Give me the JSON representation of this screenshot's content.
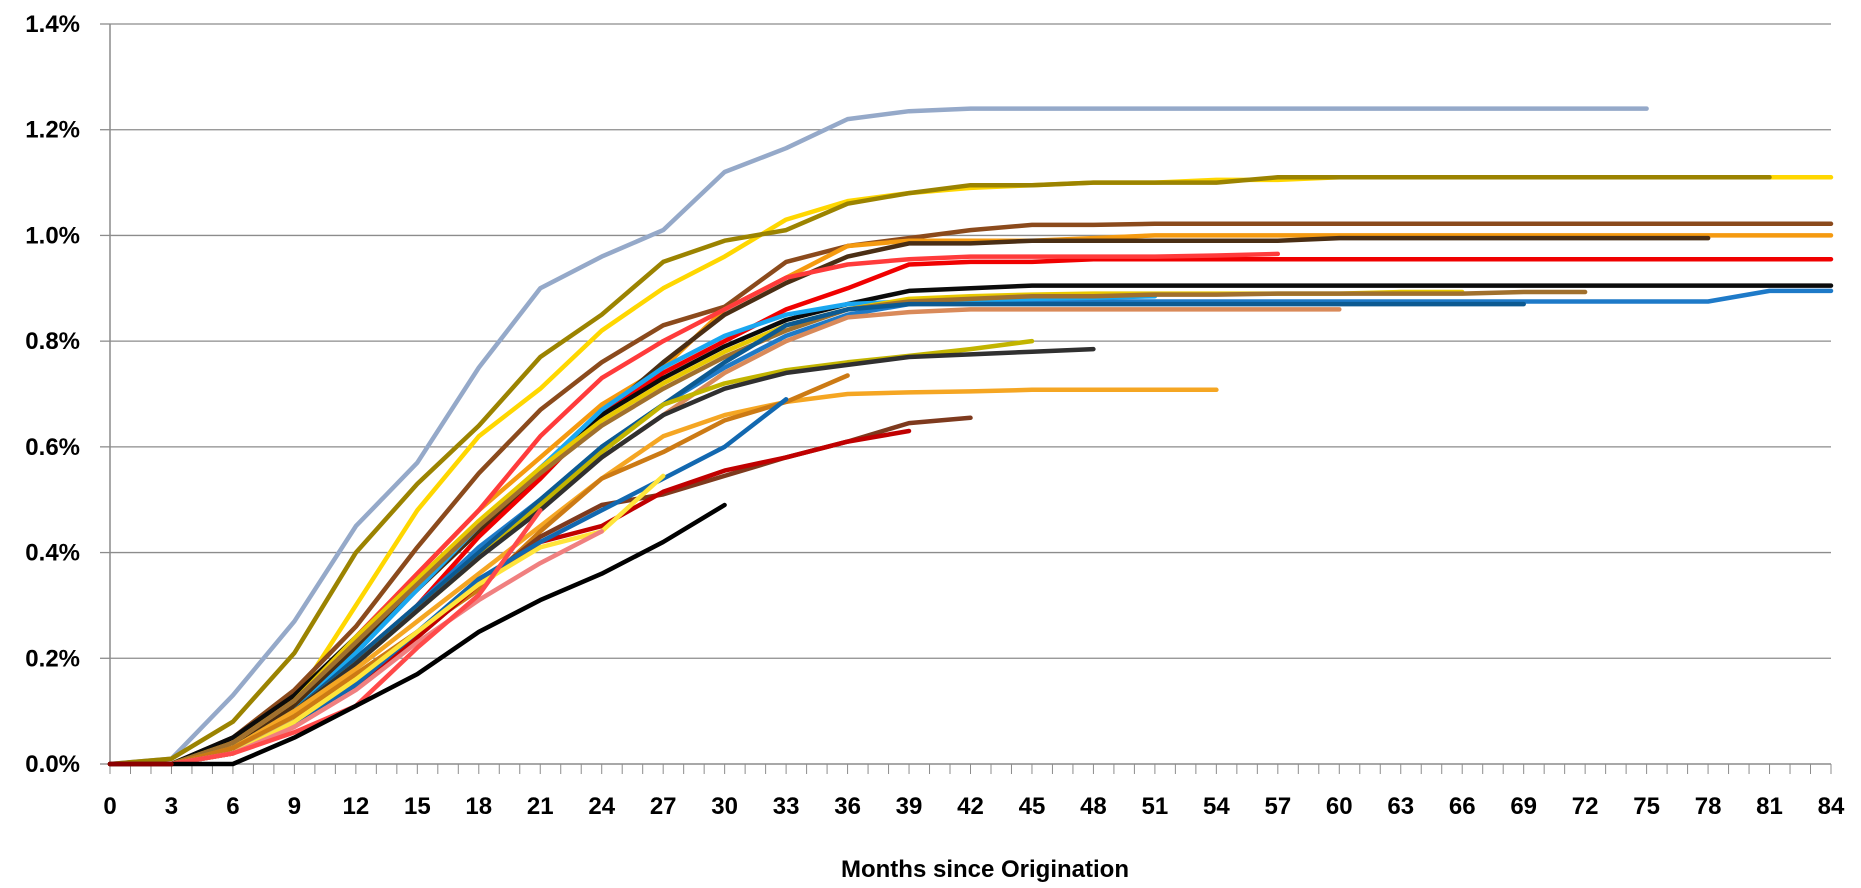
{
  "chart_data": {
    "type": "line",
    "title": "",
    "xlabel": "Months since Origination",
    "ylabel": "",
    "xlim": [
      0,
      84
    ],
    "ylim": [
      0,
      1.4
    ],
    "x_ticks": [
      "0",
      "3",
      "6",
      "9",
      "12",
      "15",
      "18",
      "21",
      "24",
      "27",
      "30",
      "33",
      "36",
      "39",
      "42",
      "45",
      "48",
      "51",
      "54",
      "57",
      "60",
      "63",
      "66",
      "69",
      "72",
      "75",
      "78",
      "81",
      "84"
    ],
    "y_ticks": [
      "0.0%",
      "0.2%",
      "0.4%",
      "0.6%",
      "0.8%",
      "1.0%",
      "1.2%",
      "1.4%"
    ],
    "grid": true,
    "legend": "none",
    "series": [
      {
        "color": "#95A9C9",
        "x": [
          0,
          3,
          6,
          9,
          12,
          15,
          18,
          21,
          24,
          27,
          30,
          33,
          36,
          39,
          42,
          45,
          48,
          51,
          54,
          57,
          60,
          63,
          66,
          69,
          72,
          75
        ],
        "y": [
          0,
          0.01,
          0.13,
          0.27,
          0.45,
          0.57,
          0.75,
          0.9,
          0.96,
          1.01,
          1.12,
          1.165,
          1.22,
          1.235,
          1.24,
          1.24,
          1.24,
          1.24,
          1.24,
          1.24,
          1.24,
          1.24,
          1.24,
          1.24,
          1.24,
          1.24
        ]
      },
      {
        "color": "#FFD700",
        "x": [
          0,
          3,
          6,
          9,
          12,
          15,
          18,
          21,
          24,
          27,
          30,
          33,
          36,
          39,
          42,
          45,
          48,
          51,
          54,
          57,
          60,
          63,
          66,
          69,
          72,
          75,
          78,
          81,
          84
        ],
        "y": [
          0,
          0,
          0.03,
          0.12,
          0.3,
          0.48,
          0.62,
          0.71,
          0.82,
          0.9,
          0.96,
          1.03,
          1.065,
          1.08,
          1.09,
          1.095,
          1.1,
          1.1,
          1.105,
          1.105,
          1.11,
          1.11,
          1.11,
          1.11,
          1.11,
          1.11,
          1.11,
          1.11,
          1.11
        ]
      },
      {
        "color": "#9B8300",
        "x": [
          0,
          3,
          6,
          9,
          12,
          15,
          18,
          21,
          24,
          27,
          30,
          33,
          36,
          39,
          42,
          45,
          48,
          51,
          54,
          57,
          60,
          63,
          66,
          69,
          72,
          75,
          78,
          81
        ],
        "y": [
          0,
          0.01,
          0.08,
          0.21,
          0.4,
          0.53,
          0.64,
          0.77,
          0.85,
          0.95,
          0.99,
          1.01,
          1.06,
          1.08,
          1.095,
          1.095,
          1.1,
          1.1,
          1.1,
          1.11,
          1.11,
          1.11,
          1.11,
          1.11,
          1.11,
          1.11,
          1.11,
          1.11
        ]
      },
      {
        "color": "#8B4A1C",
        "x": [
          0,
          3,
          6,
          9,
          12,
          15,
          18,
          21,
          24,
          27,
          30,
          33,
          36,
          39,
          42,
          45,
          48,
          51,
          54,
          57,
          60,
          63,
          66,
          69,
          72,
          75,
          78,
          81,
          84
        ],
        "y": [
          0,
          0,
          0.05,
          0.14,
          0.26,
          0.41,
          0.55,
          0.67,
          0.76,
          0.83,
          0.865,
          0.95,
          0.98,
          0.995,
          1.01,
          1.02,
          1.02,
          1.022,
          1.022,
          1.022,
          1.022,
          1.022,
          1.022,
          1.022,
          1.022,
          1.022,
          1.022,
          1.022,
          1.022
        ]
      },
      {
        "color": "#F59A10",
        "x": [
          0,
          3,
          6,
          9,
          12,
          15,
          18,
          21,
          24,
          27,
          30,
          33,
          36,
          39,
          42,
          45,
          48,
          51,
          54,
          57,
          60,
          63,
          66,
          69,
          72,
          75,
          78,
          81,
          84
        ],
        "y": [
          0,
          0,
          0.04,
          0.12,
          0.24,
          0.36,
          0.48,
          0.58,
          0.68,
          0.75,
          0.86,
          0.92,
          0.98,
          0.99,
          0.99,
          0.99,
          0.995,
          1.0,
          1.0,
          1.0,
          1.0,
          1.0,
          1.0,
          1.0,
          1.0,
          1.0,
          1.0,
          1.0,
          1.0
        ]
      },
      {
        "color": "#4A2E14",
        "x": [
          0,
          3,
          6,
          9,
          12,
          15,
          18,
          21,
          24,
          27,
          30,
          33,
          36,
          39,
          42,
          45,
          48,
          51,
          54,
          57,
          60,
          63,
          66,
          69,
          72,
          75,
          78
        ],
        "y": [
          0,
          0,
          0.03,
          0.11,
          0.22,
          0.33,
          0.44,
          0.54,
          0.66,
          0.76,
          0.85,
          0.91,
          0.96,
          0.985,
          0.985,
          0.99,
          0.99,
          0.99,
          0.99,
          0.99,
          0.995,
          0.995,
          0.995,
          0.995,
          0.995,
          0.995,
          0.995
        ]
      },
      {
        "color": "#F00000",
        "x": [
          0,
          3,
          6,
          9,
          12,
          15,
          18,
          21,
          24,
          27,
          30,
          33,
          36,
          39,
          42,
          45,
          48,
          51,
          54,
          57,
          60,
          63,
          66,
          69,
          72,
          75,
          78,
          81,
          84
        ],
        "y": [
          0,
          0,
          0.03,
          0.1,
          0.2,
          0.3,
          0.43,
          0.54,
          0.66,
          0.74,
          0.8,
          0.86,
          0.9,
          0.945,
          0.95,
          0.95,
          0.955,
          0.955,
          0.955,
          0.955,
          0.955,
          0.955,
          0.955,
          0.955,
          0.955,
          0.955,
          0.955,
          0.955,
          0.955
        ]
      },
      {
        "color": "#FF3B3B",
        "x": [
          0,
          3,
          6,
          9,
          12,
          15,
          18,
          21,
          24,
          27,
          30,
          33,
          36,
          39,
          42,
          45,
          48,
          51,
          54,
          57
        ],
        "y": [
          0,
          0,
          0.04,
          0.12,
          0.24,
          0.36,
          0.48,
          0.62,
          0.73,
          0.8,
          0.86,
          0.92,
          0.945,
          0.955,
          0.96,
          0.96,
          0.96,
          0.96,
          0.962,
          0.965
        ]
      },
      {
        "color": "#0B0B0B",
        "x": [
          0,
          3,
          6,
          9,
          12,
          15,
          18,
          21,
          24,
          27,
          30,
          33,
          36,
          39,
          42,
          45,
          48,
          51,
          54,
          57,
          60,
          63,
          66,
          69,
          72,
          75,
          78,
          81,
          84
        ],
        "y": [
          0,
          0,
          0.05,
          0.13,
          0.24,
          0.35,
          0.45,
          0.56,
          0.66,
          0.73,
          0.79,
          0.84,
          0.87,
          0.895,
          0.9,
          0.905,
          0.905,
          0.905,
          0.905,
          0.905,
          0.905,
          0.905,
          0.905,
          0.905,
          0.905,
          0.905,
          0.905,
          0.905,
          0.905
        ]
      },
      {
        "color": "#1E7AC8",
        "x": [
          0,
          3,
          6,
          9,
          12,
          15,
          18,
          21,
          24,
          27,
          30,
          33,
          36,
          39,
          42,
          45,
          48,
          51,
          54,
          57,
          60,
          63,
          66,
          69,
          72,
          75,
          78,
          81,
          84
        ],
        "y": [
          0,
          0,
          0.03,
          0.1,
          0.2,
          0.3,
          0.41,
          0.5,
          0.6,
          0.68,
          0.75,
          0.81,
          0.85,
          0.87,
          0.875,
          0.875,
          0.875,
          0.875,
          0.875,
          0.875,
          0.875,
          0.875,
          0.875,
          0.875,
          0.875,
          0.875,
          0.875,
          0.895,
          0.895
        ]
      },
      {
        "color": "#1AA7F0",
        "x": [
          0,
          3,
          6,
          9,
          12,
          15,
          18,
          21,
          24,
          27,
          30,
          33,
          36,
          39,
          42,
          45,
          48,
          51
        ],
        "y": [
          0,
          0,
          0.03,
          0.1,
          0.21,
          0.33,
          0.45,
          0.56,
          0.67,
          0.75,
          0.81,
          0.85,
          0.87,
          0.875,
          0.878,
          0.88,
          0.882,
          0.885
        ]
      },
      {
        "color": "#E8C800",
        "x": [
          0,
          3,
          6,
          9,
          12,
          15,
          18,
          21,
          24,
          27,
          30,
          33,
          36,
          39,
          42,
          45,
          48,
          51,
          54,
          57,
          60,
          63,
          66
        ],
        "y": [
          0,
          0,
          0.04,
          0.12,
          0.24,
          0.35,
          0.46,
          0.56,
          0.65,
          0.72,
          0.78,
          0.83,
          0.86,
          0.88,
          0.885,
          0.888,
          0.89,
          0.89,
          0.89,
          0.89,
          0.89,
          0.893,
          0.893
        ]
      },
      {
        "color": "#A0702E",
        "x": [
          0,
          3,
          6,
          9,
          12,
          15,
          18,
          21,
          24,
          27,
          30,
          33,
          36,
          39,
          42,
          45,
          48,
          51,
          54,
          57,
          60,
          63,
          66,
          69,
          72
        ],
        "y": [
          0,
          0,
          0.04,
          0.12,
          0.23,
          0.34,
          0.45,
          0.55,
          0.64,
          0.71,
          0.77,
          0.82,
          0.86,
          0.875,
          0.88,
          0.885,
          0.885,
          0.888,
          0.888,
          0.89,
          0.89,
          0.89,
          0.89,
          0.893,
          0.893
        ]
      },
      {
        "color": "#0C5A92",
        "x": [
          0,
          3,
          6,
          9,
          12,
          15,
          18,
          21,
          24,
          27,
          30,
          33,
          36,
          39,
          42,
          45,
          48,
          51,
          54,
          57,
          60,
          63,
          66,
          69
        ],
        "y": [
          0,
          0,
          0.03,
          0.1,
          0.2,
          0.3,
          0.4,
          0.5,
          0.6,
          0.68,
          0.76,
          0.83,
          0.86,
          0.87,
          0.87,
          0.87,
          0.87,
          0.87,
          0.87,
          0.87,
          0.87,
          0.87,
          0.87,
          0.87
        ]
      },
      {
        "color": "#D98A5A",
        "x": [
          0,
          3,
          6,
          9,
          12,
          15,
          18,
          21,
          24,
          27,
          30,
          33,
          36,
          39,
          42,
          45,
          48,
          51,
          54,
          57,
          60
        ],
        "y": [
          0,
          0,
          0.03,
          0.1,
          0.19,
          0.29,
          0.39,
          0.49,
          0.58,
          0.66,
          0.74,
          0.8,
          0.845,
          0.855,
          0.86,
          0.86,
          0.86,
          0.86,
          0.86,
          0.86,
          0.86
        ]
      },
      {
        "color": "#C2B400",
        "x": [
          0,
          3,
          6,
          9,
          12,
          15,
          18,
          21,
          24,
          27,
          30,
          33,
          36,
          39,
          42,
          45
        ],
        "y": [
          0,
          0,
          0.03,
          0.1,
          0.19,
          0.29,
          0.39,
          0.49,
          0.59,
          0.68,
          0.72,
          0.745,
          0.76,
          0.772,
          0.785,
          0.8
        ]
      },
      {
        "color": "#303030",
        "x": [
          0,
          3,
          6,
          9,
          12,
          15,
          18,
          21,
          24,
          27,
          30,
          33,
          36,
          39,
          42,
          45,
          48
        ],
        "y": [
          0,
          0,
          0.03,
          0.1,
          0.19,
          0.29,
          0.39,
          0.48,
          0.58,
          0.66,
          0.71,
          0.74,
          0.755,
          0.77,
          0.775,
          0.78,
          0.785
        ]
      },
      {
        "color": "#F5A623",
        "x": [
          0,
          3,
          6,
          9,
          12,
          15,
          18,
          21,
          24,
          27,
          30,
          33,
          36,
          39,
          42,
          45,
          48,
          51,
          54
        ],
        "y": [
          0,
          0,
          0.03,
          0.1,
          0.18,
          0.27,
          0.36,
          0.45,
          0.54,
          0.62,
          0.66,
          0.685,
          0.7,
          0.703,
          0.705,
          0.708,
          0.708,
          0.708,
          0.708
        ]
      },
      {
        "color": "#CC7A14",
        "x": [
          0,
          3,
          6,
          9,
          12,
          15,
          18,
          21,
          24,
          27,
          30,
          33,
          36
        ],
        "y": [
          0,
          0,
          0.03,
          0.09,
          0.17,
          0.25,
          0.33,
          0.44,
          0.54,
          0.59,
          0.65,
          0.685,
          0.735
        ]
      },
      {
        "color": "#7E3A1E",
        "x": [
          0,
          3,
          6,
          9,
          12,
          15,
          18,
          21,
          24,
          27,
          30,
          33,
          36,
          39,
          42
        ],
        "y": [
          0,
          0,
          0.02,
          0.08,
          0.15,
          0.24,
          0.34,
          0.43,
          0.49,
          0.51,
          0.545,
          0.58,
          0.61,
          0.645,
          0.655
        ]
      },
      {
        "color": "#C00000",
        "x": [
          0,
          3,
          6,
          9,
          12,
          15,
          18,
          21,
          24,
          27,
          30,
          33,
          36,
          39
        ],
        "y": [
          0,
          0,
          0.02,
          0.08,
          0.15,
          0.24,
          0.34,
          0.42,
          0.45,
          0.515,
          0.555,
          0.58,
          0.61,
          0.63
        ]
      },
      {
        "color": "#1268B0",
        "x": [
          0,
          3,
          6,
          9,
          12,
          15,
          18,
          21,
          24,
          27,
          30,
          33
        ],
        "y": [
          0,
          0,
          0.02,
          0.08,
          0.15,
          0.25,
          0.35,
          0.42,
          0.48,
          0.54,
          0.6,
          0.69
        ]
      },
      {
        "color": "#FFE43A",
        "x": [
          0,
          3,
          6,
          9,
          12,
          15,
          18,
          21,
          24,
          27
        ],
        "y": [
          0,
          0,
          0.02,
          0.08,
          0.16,
          0.25,
          0.34,
          0.41,
          0.44,
          0.545
        ]
      },
      {
        "color": "#F08080",
        "x": [
          0,
          3,
          6,
          9,
          12,
          15,
          18,
          21,
          24
        ],
        "y": [
          0,
          0,
          0.02,
          0.07,
          0.14,
          0.23,
          0.31,
          0.38,
          0.44
        ]
      },
      {
        "color": "#FF4A4A",
        "x": [
          0,
          3,
          6,
          9,
          12,
          15,
          18,
          21
        ],
        "y": [
          0,
          0,
          0.02,
          0.06,
          0.11,
          0.22,
          0.32,
          0.48
        ]
      },
      {
        "color": "#000000",
        "x": [
          0,
          3,
          6,
          9,
          12,
          15,
          18,
          21,
          24,
          27,
          30
        ],
        "y": [
          0,
          0,
          0,
          0.05,
          0.11,
          0.17,
          0.25,
          0.31,
          0.36,
          0.42,
          0.49
        ]
      },
      {
        "color": "#8B0000",
        "x": [
          0,
          3
        ],
        "y": [
          0,
          0
        ]
      }
    ]
  }
}
